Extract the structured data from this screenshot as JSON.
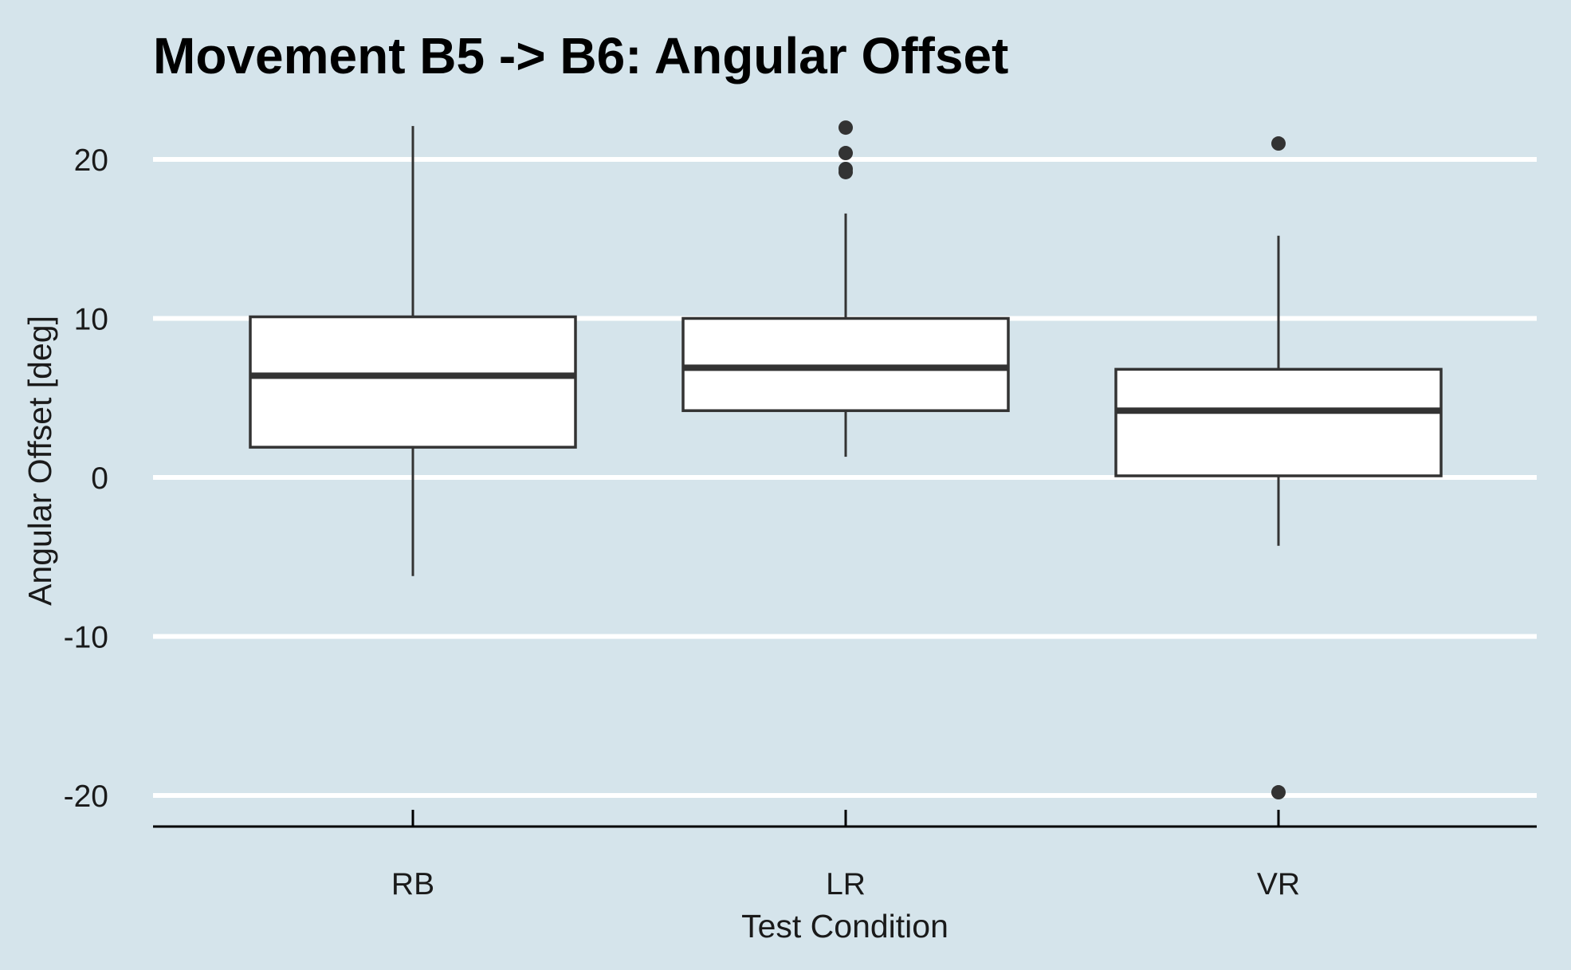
{
  "chart_data": {
    "type": "boxplot",
    "title": "Movement B5 -> B6: Angular Offset",
    "xlabel": "Test Condition",
    "ylabel": "Angular Offset [deg]",
    "ylim": [
      -22,
      23
    ],
    "yticks": [
      20,
      10,
      0,
      -10,
      -20
    ],
    "ytick_labels": [
      "20",
      "10",
      "0",
      "-10",
      "-20"
    ],
    "grid": "horizontal major lines",
    "colors": {
      "background": "#d5e4eb",
      "grid": "#ffffff",
      "box_fill": "#ffffff",
      "box_line": "#333333"
    },
    "categories": [
      "RB",
      "LR",
      "VR"
    ],
    "boxes": [
      {
        "category": "RB",
        "whisker_low": -6.2,
        "q1": 1.9,
        "median": 6.4,
        "q3": 10.1,
        "whisker_high": 22.1,
        "outliers": []
      },
      {
        "category": "LR",
        "whisker_low": 1.3,
        "q1": 4.2,
        "median": 6.9,
        "q3": 10.0,
        "whisker_high": 16.6,
        "outliers": [
          22.0,
          20.4,
          19.4,
          19.2
        ]
      },
      {
        "category": "VR",
        "whisker_low": -4.3,
        "q1": 0.1,
        "median": 4.2,
        "q3": 6.8,
        "whisker_high": 15.2,
        "outliers": [
          21.0,
          -19.8
        ]
      }
    ]
  }
}
